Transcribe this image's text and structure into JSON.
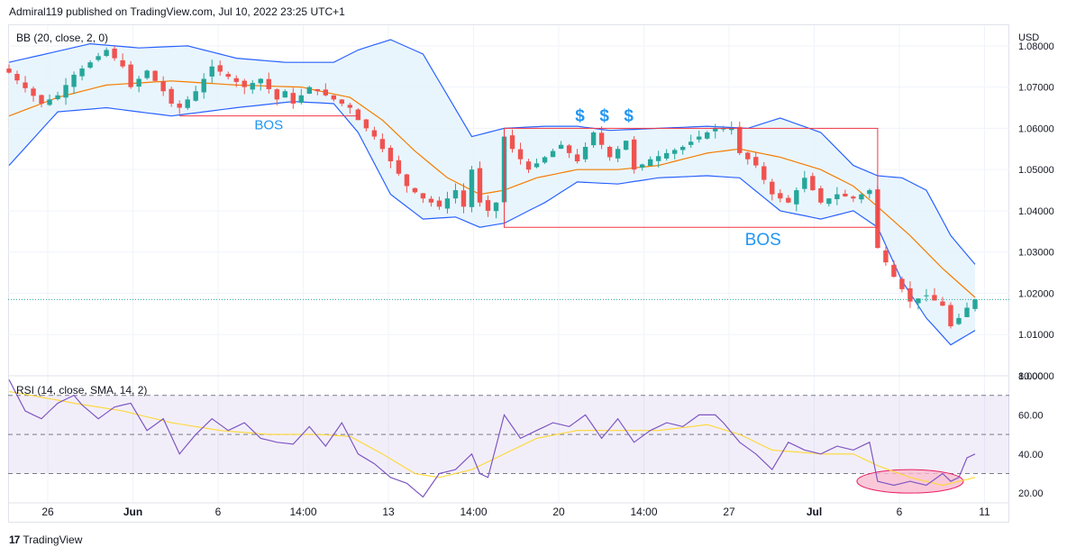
{
  "header": {
    "publish_line": "Admiral119 published on TradingView.com, Jul 10, 2022 23:25 UTC+1"
  },
  "footer": {
    "brand": "TradingView",
    "logo_glyph": "17"
  },
  "colors": {
    "up": "#26a69a",
    "down": "#ef5350",
    "band": "#2962ff",
    "band_fill": "#e3f2fd",
    "basis": "#f57c00",
    "rsi": "#7e57c2",
    "rsi_sma": "#fdd835",
    "annotation": "#2196f3",
    "box": "#f23645",
    "oval_fill": "#f8bbd0",
    "oval_stroke": "#e91e63"
  },
  "chart_data": [
    {
      "type": "candlestick",
      "title": "",
      "indicator_label": "BB (20, close, 2, 0)",
      "currency": "USD",
      "ylim": [
        1.0,
        1.085
      ],
      "y_ticks": [
        "1.08000",
        "1.07000",
        "1.06000",
        "1.05000",
        "1.04000",
        "1.03000",
        "1.02000",
        "1.01000",
        "1.00000"
      ],
      "x_ticks": [
        "26",
        "Jun",
        "6",
        "14:00",
        "13",
        "14:00",
        "20",
        "14:00",
        "27",
        "Jul",
        "6",
        "11"
      ],
      "last_price": 1.0185,
      "annotations": {
        "bos_left": "BOS",
        "bos_right": "BOS",
        "dollars": [
          "$",
          "$",
          "$"
        ]
      },
      "close_path": [
        [
          0,
          1.0735
        ],
        [
          4,
          1.066
        ],
        [
          6,
          1.068
        ],
        [
          8,
          1.073
        ],
        [
          10,
          1.076
        ],
        [
          12,
          1.079
        ],
        [
          14,
          1.075
        ],
        [
          15,
          1.07
        ],
        [
          17,
          1.074
        ],
        [
          19,
          1.069
        ],
        [
          20,
          1.066
        ],
        [
          21,
          1.065
        ],
        [
          23,
          1.069
        ],
        [
          25,
          1.075
        ],
        [
          27,
          1.0725
        ],
        [
          29,
          1.07
        ],
        [
          31,
          1.072
        ],
        [
          33,
          1.067
        ],
        [
          34,
          1.069
        ],
        [
          35,
          1.066
        ],
        [
          37,
          1.07
        ],
        [
          39,
          1.068
        ],
        [
          42,
          1.065
        ],
        [
          43,
          1.062
        ],
        [
          45,
          1.058
        ],
        [
          47,
          1.052
        ],
        [
          49,
          1.046
        ],
        [
          51,
          1.043
        ],
        [
          53,
          1.041
        ],
        [
          55,
          1.045
        ],
        [
          56,
          1.041
        ],
        [
          57,
          1.05
        ],
        [
          58,
          1.042
        ],
        [
          59,
          1.04
        ],
        [
          60,
          1.042
        ],
        [
          61,
          1.058
        ],
        [
          62,
          1.055
        ],
        [
          64,
          1.05
        ],
        [
          66,
          1.053
        ],
        [
          68,
          1.056
        ],
        [
          70,
          1.052
        ],
        [
          72,
          1.059
        ],
        [
          74,
          1.053
        ],
        [
          76,
          1.057
        ],
        [
          77,
          1.05
        ],
        [
          79,
          1.0525
        ],
        [
          81,
          1.054
        ],
        [
          83,
          1.0555
        ],
        [
          85,
          1.058
        ],
        [
          87,
          1.06
        ],
        [
          89,
          1.06
        ],
        [
          90,
          1.054
        ],
        [
          92,
          1.051
        ],
        [
          94,
          1.044
        ],
        [
          96,
          1.042
        ],
        [
          98,
          1.048
        ],
        [
          100,
          1.042
        ],
        [
          102,
          1.044
        ],
        [
          104,
          1.043
        ],
        [
          106,
          1.045
        ],
        [
          107,
          1.031
        ],
        [
          109,
          1.024
        ],
        [
          111,
          1.018
        ],
        [
          113,
          1.0195
        ],
        [
          115,
          1.017
        ],
        [
          116,
          1.012
        ],
        [
          117,
          1.014
        ],
        [
          118,
          1.0165
        ],
        [
          119,
          1.0185
        ]
      ],
      "upper_band": [
        [
          0,
          1.076
        ],
        [
          10,
          1.0805
        ],
        [
          16,
          1.0795
        ],
        [
          22,
          1.08
        ],
        [
          28,
          1.077
        ],
        [
          34,
          1.076
        ],
        [
          40,
          1.076
        ],
        [
          43,
          1.079
        ],
        [
          47,
          1.0815
        ],
        [
          51,
          1.078
        ],
        [
          54,
          1.068
        ],
        [
          57,
          1.058
        ],
        [
          61,
          1.06
        ],
        [
          66,
          1.0605
        ],
        [
          70,
          1.0605
        ],
        [
          74,
          1.0595
        ],
        [
          80,
          1.06
        ],
        [
          86,
          1.0605
        ],
        [
          91,
          1.06
        ],
        [
          95,
          1.0625
        ],
        [
          100,
          1.059
        ],
        [
          104,
          1.051
        ],
        [
          107,
          1.0485
        ],
        [
          110,
          1.048
        ],
        [
          113,
          1.045
        ],
        [
          116,
          1.034
        ],
        [
          119,
          1.027
        ]
      ],
      "basis": [
        [
          0,
          1.063
        ],
        [
          6,
          1.0675
        ],
        [
          12,
          1.0705
        ],
        [
          20,
          1.0715
        ],
        [
          28,
          1.0705
        ],
        [
          36,
          1.07
        ],
        [
          42,
          1.0675
        ],
        [
          46,
          1.062
        ],
        [
          50,
          1.0545
        ],
        [
          54,
          1.048
        ],
        [
          58,
          1.044
        ],
        [
          61,
          1.045
        ],
        [
          65,
          1.048
        ],
        [
          70,
          1.05
        ],
        [
          75,
          1.05
        ],
        [
          80,
          1.051
        ],
        [
          86,
          1.054
        ],
        [
          90,
          1.055
        ],
        [
          95,
          1.053
        ],
        [
          100,
          1.05
        ],
        [
          104,
          1.046
        ],
        [
          107,
          1.041
        ],
        [
          111,
          1.034
        ],
        [
          115,
          1.026
        ],
        [
          119,
          1.019
        ]
      ],
      "lower_band": [
        [
          0,
          1.051
        ],
        [
          6,
          1.064
        ],
        [
          12,
          1.065
        ],
        [
          20,
          1.063
        ],
        [
          28,
          1.065
        ],
        [
          35,
          1.0665
        ],
        [
          40,
          1.066
        ],
        [
          43,
          1.059
        ],
        [
          47,
          1.044
        ],
        [
          51,
          1.038
        ],
        [
          55,
          1.0385
        ],
        [
          58,
          1.036
        ],
        [
          61,
          1.037
        ],
        [
          66,
          1.042
        ],
        [
          70,
          1.047
        ],
        [
          75,
          1.0465
        ],
        [
          80,
          1.048
        ],
        [
          86,
          1.0485
        ],
        [
          90,
          1.048
        ],
        [
          95,
          1.04
        ],
        [
          100,
          1.038
        ],
        [
          104,
          1.04
        ],
        [
          107,
          1.036
        ],
        [
          110,
          1.023
        ],
        [
          113,
          1.014
        ],
        [
          116,
          1.0075
        ],
        [
          119,
          1.011
        ]
      ],
      "bos_left_line": {
        "x": [
          21,
          43
        ],
        "price": 1.063
      },
      "range_box": {
        "x": [
          61,
          107
        ],
        "top": 1.06,
        "bottom": 1.036
      }
    },
    {
      "type": "line",
      "indicator_label": "RSI (14, close, SMA, 14, 2)",
      "ylim": [
        15,
        80
      ],
      "y_ticks": [
        "80.00",
        "60.00",
        "40.00",
        "20.00"
      ],
      "levels": {
        "upper": 70,
        "middle": 50,
        "lower": 30
      },
      "rsi": [
        [
          0,
          78
        ],
        [
          2,
          62
        ],
        [
          4,
          58
        ],
        [
          6,
          66
        ],
        [
          8,
          70
        ],
        [
          9,
          65
        ],
        [
          11,
          58
        ],
        [
          13,
          64
        ],
        [
          15,
          66
        ],
        [
          17,
          52
        ],
        [
          19,
          58
        ],
        [
          21,
          40
        ],
        [
          23,
          50
        ],
        [
          25,
          58
        ],
        [
          27,
          52
        ],
        [
          29,
          56
        ],
        [
          31,
          48
        ],
        [
          33,
          46
        ],
        [
          35,
          45
        ],
        [
          37,
          54
        ],
        [
          39,
          44
        ],
        [
          41,
          56
        ],
        [
          43,
          40
        ],
        [
          45,
          35
        ],
        [
          47,
          28
        ],
        [
          49,
          25
        ],
        [
          51,
          18
        ],
        [
          53,
          30
        ],
        [
          55,
          32
        ],
        [
          57,
          40
        ],
        [
          58,
          30
        ],
        [
          59,
          28
        ],
        [
          61,
          60
        ],
        [
          63,
          48
        ],
        [
          65,
          52
        ],
        [
          67,
          56
        ],
        [
          69,
          54
        ],
        [
          71,
          60
        ],
        [
          73,
          48
        ],
        [
          75,
          58
        ],
        [
          77,
          46
        ],
        [
          79,
          52
        ],
        [
          81,
          56
        ],
        [
          83,
          54
        ],
        [
          85,
          60
        ],
        [
          87,
          60
        ],
        [
          88,
          56
        ],
        [
          90,
          46
        ],
        [
          92,
          40
        ],
        [
          94,
          32
        ],
        [
          96,
          46
        ],
        [
          98,
          42
        ],
        [
          100,
          40
        ],
        [
          102,
          44
        ],
        [
          104,
          42
        ],
        [
          106,
          46
        ],
        [
          107,
          26
        ],
        [
          109,
          24
        ],
        [
          111,
          26
        ],
        [
          113,
          24
        ],
        [
          115,
          30
        ],
        [
          116,
          26
        ],
        [
          117,
          28
        ],
        [
          118,
          38
        ],
        [
          119,
          40
        ]
      ],
      "rsi_sma": [
        [
          0,
          72
        ],
        [
          8,
          66
        ],
        [
          14,
          62
        ],
        [
          20,
          56
        ],
        [
          26,
          52
        ],
        [
          32,
          50
        ],
        [
          38,
          50
        ],
        [
          42,
          49
        ],
        [
          46,
          40
        ],
        [
          50,
          30
        ],
        [
          53,
          28
        ],
        [
          57,
          32
        ],
        [
          61,
          40
        ],
        [
          65,
          48
        ],
        [
          70,
          52
        ],
        [
          75,
          52
        ],
        [
          80,
          52
        ],
        [
          86,
          55
        ],
        [
          90,
          50
        ],
        [
          94,
          42
        ],
        [
          100,
          40
        ],
        [
          104,
          40
        ],
        [
          107,
          34
        ],
        [
          111,
          28
        ],
        [
          115,
          24
        ],
        [
          119,
          28
        ]
      ],
      "oval_center": [
        111,
        26
      ]
    }
  ]
}
